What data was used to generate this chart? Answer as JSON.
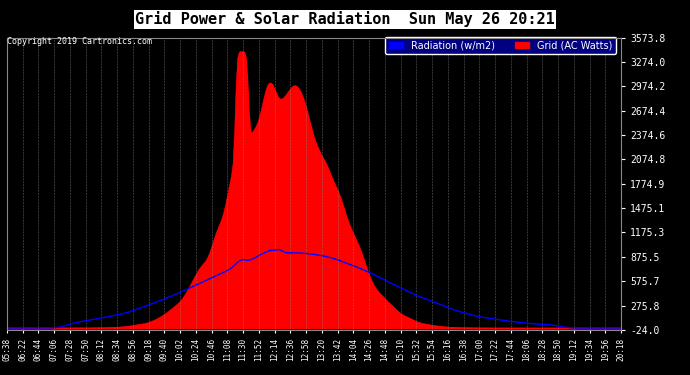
{
  "title": "Grid Power & Solar Radiation  Sun May 26 20:21",
  "copyright": "Copyright 2019 Cartronics.com",
  "legend_items": [
    "Radiation (w/m2)",
    "Grid (AC Watts)"
  ],
  "legend_colors": [
    "#0000ff",
    "#ff0000"
  ],
  "bg_color": "#000000",
  "plot_bg_color": "#000000",
  "grid_color": "#ffffff",
  "yticks": [
    3573.8,
    3274.0,
    2974.2,
    2674.4,
    2374.6,
    2074.8,
    1774.9,
    1475.1,
    1175.3,
    875.5,
    575.7,
    275.8,
    -24.0
  ],
  "ymin": -24.0,
  "ymax": 3573.8,
  "x_labels": [
    "05:38",
    "06:22",
    "06:44",
    "07:06",
    "07:28",
    "07:50",
    "08:12",
    "08:34",
    "08:56",
    "09:18",
    "09:40",
    "10:02",
    "10:24",
    "10:46",
    "11:08",
    "11:30",
    "11:52",
    "12:14",
    "12:36",
    "12:58",
    "13:20",
    "13:42",
    "14:04",
    "14:26",
    "14:48",
    "15:10",
    "15:32",
    "15:54",
    "16:16",
    "16:38",
    "17:00",
    "17:22",
    "17:44",
    "18:06",
    "18:28",
    "18:50",
    "19:12",
    "19:34",
    "19:56",
    "20:18"
  ],
  "title_color": "#000000",
  "title_bg": "#ffffff",
  "red_color": "#ff0000",
  "blue_color": "#0000ff"
}
